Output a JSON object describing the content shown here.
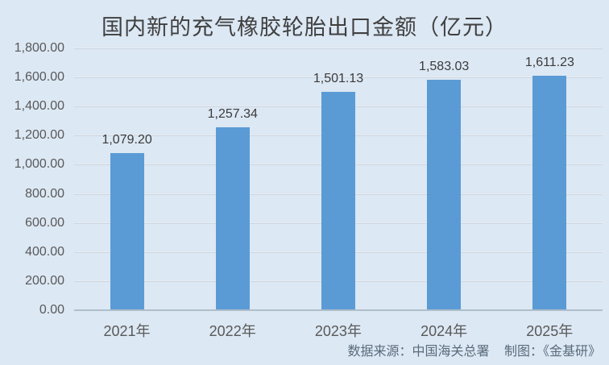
{
  "title": "国内新的充气橡胶轮胎出口金额（亿元）",
  "footer": {
    "source": "数据来源：中国海关总署",
    "credit": "制图：《金基研》"
  },
  "colors": {
    "background": "#DCE8F4",
    "bar": "#5B9BD5",
    "gridline": "#CBD6E2",
    "axis_line": "#AFBECB",
    "title_text": "#404040",
    "tick_text": "#595959",
    "value_label_text": "#3B3B3B",
    "footer_text": "#5A6B7A"
  },
  "chart_data": {
    "type": "bar",
    "title": "国内新的充气橡胶轮胎出口金额（亿元）",
    "categories": [
      "2021年",
      "2022年",
      "2023年",
      "2024年",
      "2025年"
    ],
    "values": [
      1079.2,
      1257.34,
      1501.13,
      1583.03,
      1611.23
    ],
    "value_labels": [
      "1,079.20",
      "1,257.34",
      "1,501.13",
      "1,583.03",
      "1,611.23"
    ],
    "xlabel": "",
    "ylabel": "",
    "ylim": [
      0,
      1800
    ],
    "ytick_values": [
      0,
      200,
      400,
      600,
      800,
      1000,
      1200,
      1400,
      1600,
      1800
    ],
    "ytick_labels": [
      "0.00",
      "200.00",
      "400.00",
      "600.00",
      "800.00",
      "1,000.00",
      "1,200.00",
      "1,400.00",
      "1,600.00",
      "1,800.00"
    ],
    "grid": true,
    "legend": "none",
    "source_note": "数据来源：中国海关总署",
    "credit_note": "制图：《金基研》"
  }
}
